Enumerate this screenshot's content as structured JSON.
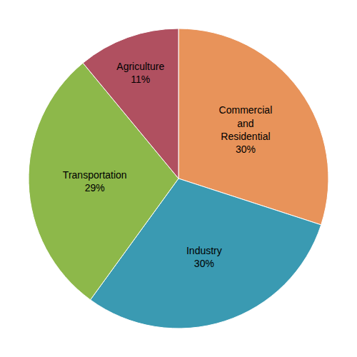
{
  "chart_data": {
    "type": "pie",
    "categories": [
      "Commercial\nand\nResidential",
      "Industry",
      "Transportation",
      "Agriculture"
    ],
    "values": [
      30,
      30,
      29,
      11
    ],
    "value_labels": [
      "30%",
      "30%",
      "29%",
      "11%"
    ],
    "colors": [
      "#E8935A",
      "#3A9AB2",
      "#8DB84A",
      "#B05060"
    ],
    "data_labels": true
  }
}
